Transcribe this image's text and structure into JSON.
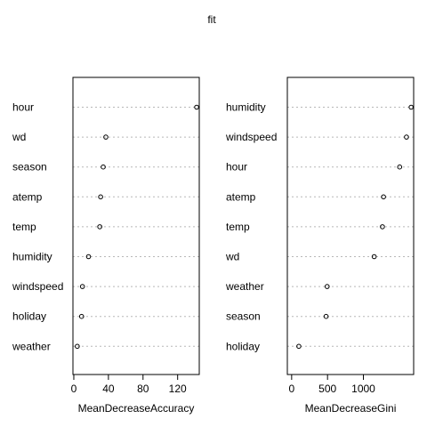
{
  "title": "fit",
  "chart_data": [
    {
      "type": "scatter",
      "subtype": "dotchart",
      "xlabel": "MeanDecreaseAccuracy",
      "ylabel": "",
      "xlim": [
        -1,
        145
      ],
      "xticks": [
        0,
        40,
        80,
        120
      ],
      "grid": "dotted horizontal guides",
      "categories": [
        "hour",
        "wd",
        "season",
        "atemp",
        "temp",
        "humidity",
        "windspeed",
        "holiday",
        "weather"
      ],
      "values": [
        142,
        37,
        34,
        31,
        30,
        17,
        10,
        9,
        4
      ]
    },
    {
      "type": "scatter",
      "subtype": "dotchart",
      "xlabel": "MeanDecreaseGini",
      "ylabel": "",
      "xlim": [
        -60,
        1700
      ],
      "xticks": [
        0,
        500,
        1000
      ],
      "grid": "dotted horizontal guides",
      "categories": [
        "humidity",
        "windspeed",
        "hour",
        "atemp",
        "temp",
        "wd",
        "weather",
        "season",
        "holiday"
      ],
      "values": [
        1665,
        1600,
        1505,
        1280,
        1265,
        1150,
        495,
        480,
        100
      ]
    }
  ]
}
